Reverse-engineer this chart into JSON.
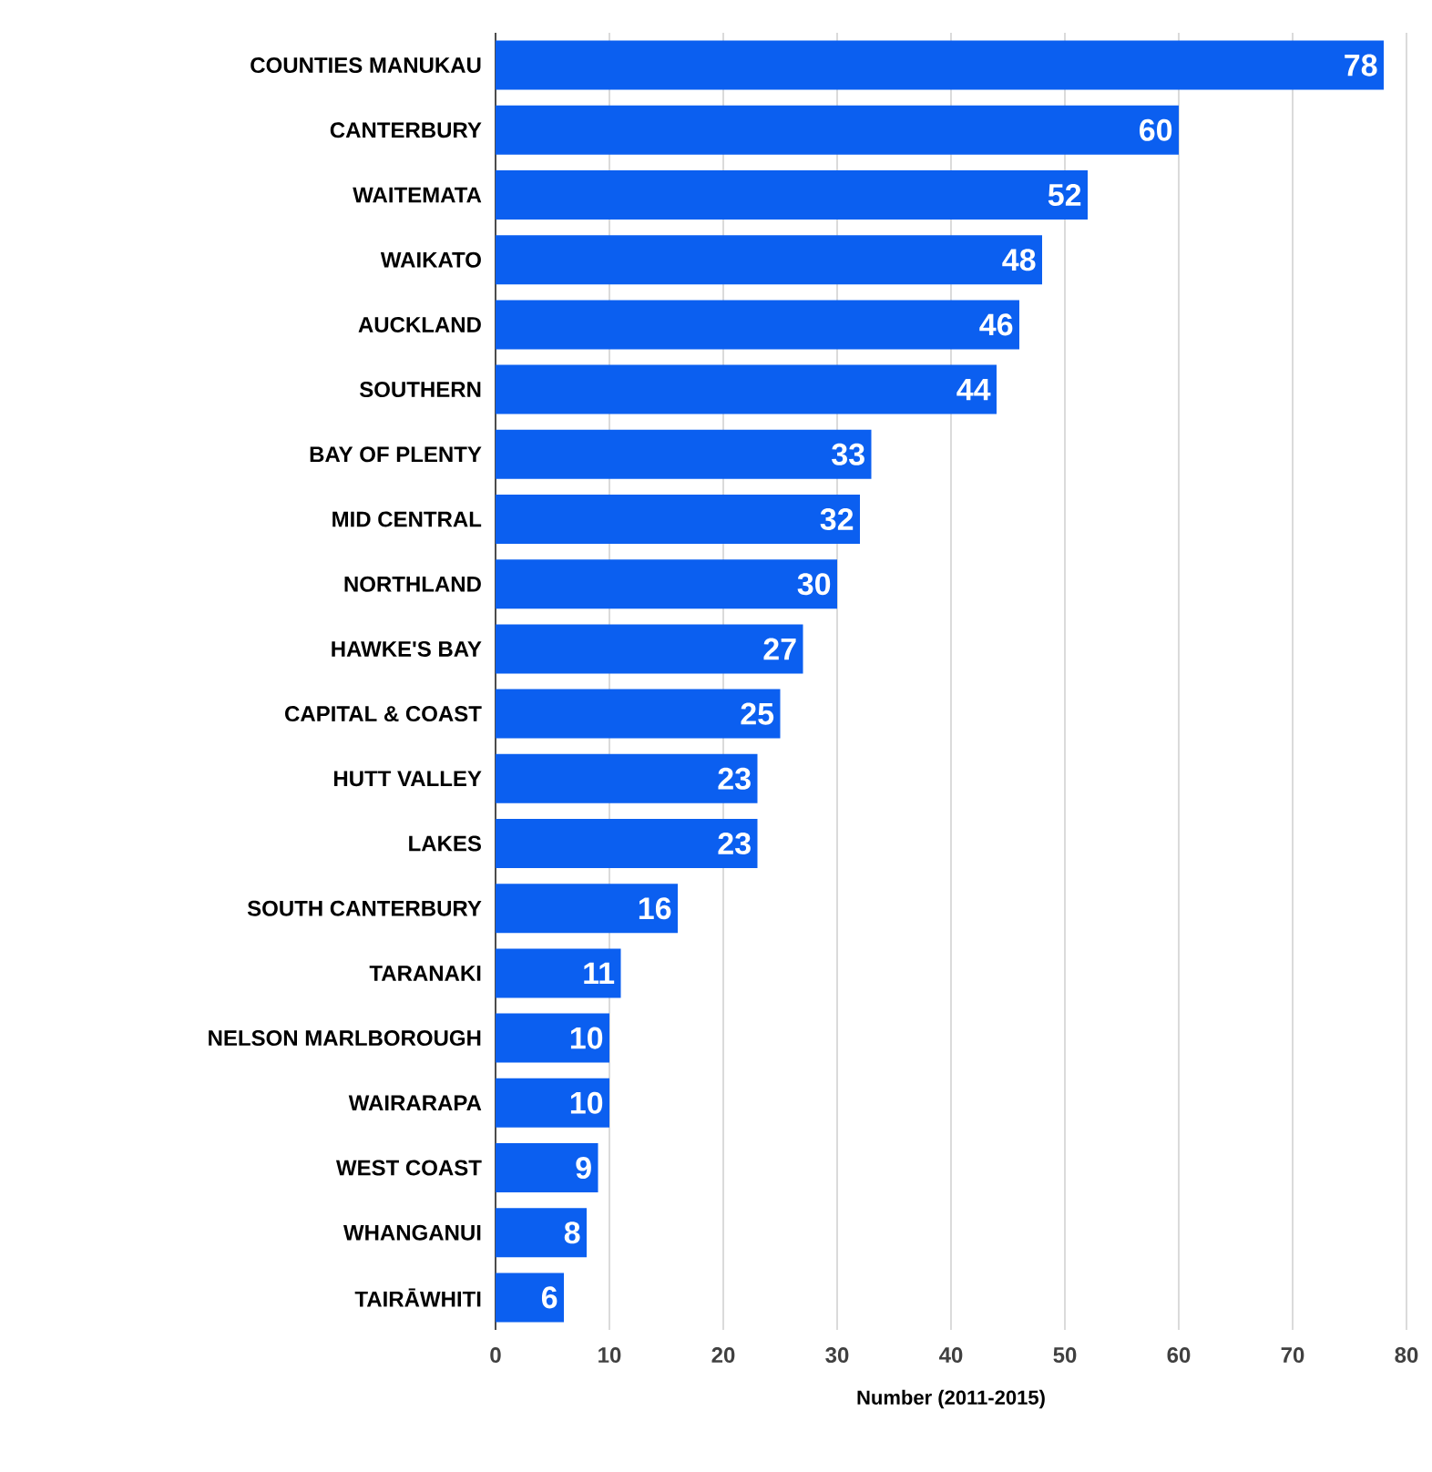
{
  "chart_data": {
    "type": "bar",
    "orientation": "horizontal",
    "xlabel": "Number (2011-2015)",
    "categories": [
      "COUNTIES MANUKAU",
      "CANTERBURY",
      "WAITEMATA",
      "WAIKATO",
      "AUCKLAND",
      "SOUTHERN",
      "BAY OF PLENTY",
      "MID CENTRAL",
      "NORTHLAND",
      "HAWKE'S BAY",
      "CAPITAL & COAST",
      "HUTT VALLEY",
      "LAKES",
      "SOUTH CANTERBURY",
      "TARANAKI",
      "NELSON MARLBOROUGH",
      "WAIRARAPA",
      "WEST COAST",
      "WHANGANUI",
      "TAIRĀWHITI"
    ],
    "values": [
      78,
      60,
      52,
      48,
      46,
      44,
      33,
      32,
      30,
      27,
      25,
      23,
      23,
      16,
      11,
      10,
      10,
      9,
      8,
      6
    ],
    "color": "#0b5ff0",
    "xlim": [
      0,
      80
    ],
    "xticks": [
      0,
      10,
      20,
      30,
      40,
      50,
      60,
      70,
      80
    ],
    "grid": "x",
    "data_labels": true
  }
}
